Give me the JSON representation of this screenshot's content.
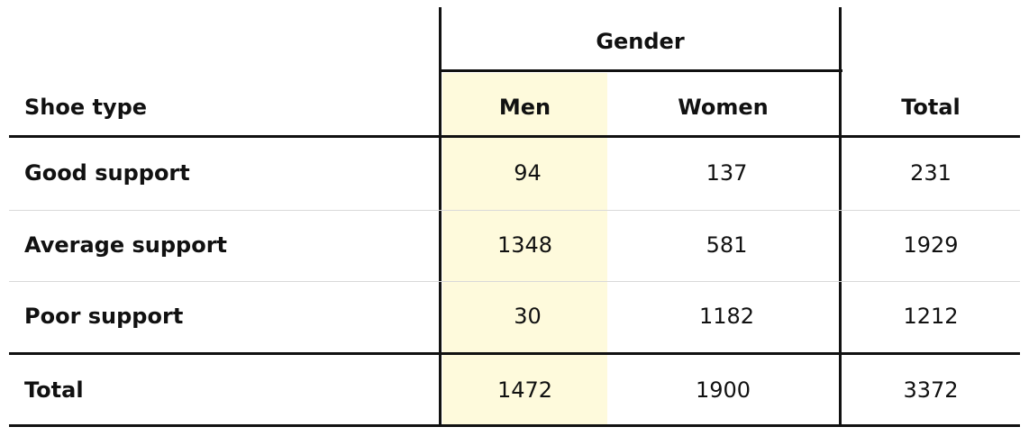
{
  "header": {
    "group_label": "Gender",
    "row_header": "Shoe type",
    "columns": [
      "Men",
      "Women",
      "Total"
    ]
  },
  "rows": [
    {
      "label": "Good support",
      "values": [
        "94",
        "137",
        "231"
      ]
    },
    {
      "label": "Average support",
      "values": [
        "1348",
        "581",
        "1929"
      ]
    },
    {
      "label": "Poor support",
      "values": [
        "30",
        "1182",
        "1212"
      ]
    }
  ],
  "total_row": {
    "label": "Total",
    "values": [
      "1472",
      "1900",
      "3372"
    ]
  },
  "colors": {
    "highlight": "#fefadc",
    "rule": "#111111",
    "thin_rule": "#d9d9d9"
  }
}
